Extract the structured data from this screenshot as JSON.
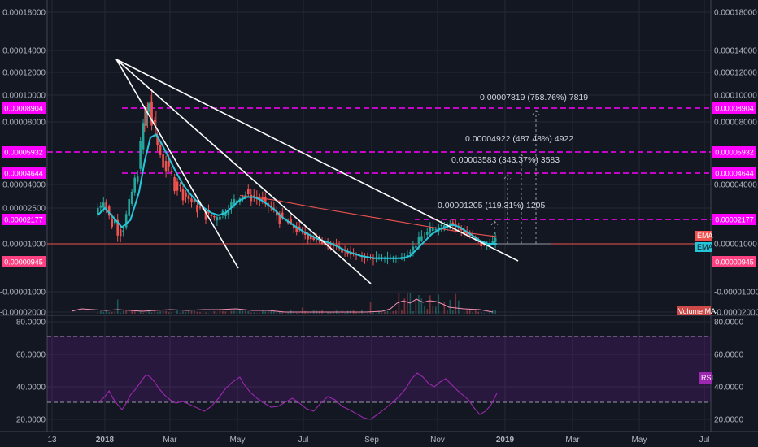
{
  "chart_data": {
    "type": "line",
    "x_labels": [
      "13",
      "2018",
      "Mar",
      "May",
      "Jul",
      "Sep",
      "Nov",
      "2019",
      "Mar",
      "May",
      "Jul"
    ],
    "price_ticks": [
      "0.00018000",
      "0.00014000",
      "0.00012000",
      "0.00010000",
      "0.00008000",
      "0.00004000",
      "0.00002500",
      "0.00001000",
      "-0.00001000",
      "-0.00002000"
    ],
    "price_ticks_right": [
      "0.00018000",
      "0.00014000",
      "0.00012000",
      "0.00010000",
      "0.00008000",
      "0.00004000",
      "0.00001000",
      "-0.00001000",
      "-0.00002000"
    ],
    "level_labels": [
      "0.00008904",
      "0.00005932",
      "0.00004644",
      "0.00002177",
      "0.00000945"
    ],
    "annotations": [
      "0.00007819 (758.76%) 7819",
      "0.00004922 (487.48%) 4922",
      "0.00003583 (343.37%) 3583",
      "0.00001205 (119.31%) 1205"
    ],
    "indicator_labels": [
      "EMA",
      "EMA"
    ],
    "volume_label": "Volume MA",
    "rsi": {
      "label": "RSI",
      "ticks": [
        "80.0000",
        "60.0000",
        "40.0000",
        "20.0000"
      ],
      "upper": 70,
      "lower": 30,
      "range": [
        18,
        82
      ]
    },
    "price_series": [
      [
        -5,
        2.2e-05
      ],
      [
        0,
        3e-05
      ],
      [
        3,
        2.6e-05
      ],
      [
        6,
        1.8e-05
      ],
      [
        9,
        2e-05
      ],
      [
        12,
        1.4e-05
      ],
      [
        15,
        1.7e-05
      ],
      [
        18,
        2.4e-05
      ],
      [
        21,
        3.5e-05
      ],
      [
        24,
        4.5e-05
      ],
      [
        26,
        5.5e-05
      ],
      [
        28,
        7e-05
      ],
      [
        30,
        8.5e-05
      ],
      [
        32,
        9e-05
      ],
      [
        33,
        9.5e-05
      ],
      [
        35,
        8e-05
      ],
      [
        37,
        7.1e-05
      ],
      [
        40,
        6.2e-05
      ],
      [
        43,
        5.5e-05
      ],
      [
        46,
        5e-05
      ],
      [
        50,
        4.3e-05
      ],
      [
        55,
        3.7e-05
      ],
      [
        60,
        3.2e-05
      ],
      [
        65,
        2.7e-05
      ],
      [
        70,
        2.4e-05
      ],
      [
        75,
        2.2e-05
      ],
      [
        80,
        2.1e-05
      ],
      [
        85,
        2.3e-05
      ],
      [
        90,
        2.6e-05
      ],
      [
        95,
        3.1e-05
      ],
      [
        100,
        3.4e-05
      ],
      [
        105,
        3.3e-05
      ],
      [
        110,
        3.1e-05
      ],
      [
        115,
        2.8e-05
      ],
      [
        120,
        2.4e-05
      ],
      [
        125,
        2.1e-05
      ],
      [
        130,
        1.9e-05
      ],
      [
        135,
        1.7e-05
      ],
      [
        140,
        1.5e-05
      ],
      [
        150,
        1.2e-05
      ],
      [
        160,
        1e-05
      ],
      [
        170,
        7e-06
      ],
      [
        180,
        5e-06
      ],
      [
        190,
        4e-06
      ],
      [
        200,
        4e-06
      ],
      [
        210,
        4e-06
      ],
      [
        215,
        6e-06
      ],
      [
        220,
        9e-06
      ],
      [
        225,
        1.3e-05
      ],
      [
        230,
        1.5e-05
      ],
      [
        235,
        1.7e-05
      ],
      [
        240,
        1.8e-05
      ],
      [
        245,
        1.9e-05
      ],
      [
        250,
        1.7e-05
      ],
      [
        255,
        1.5e-05
      ],
      [
        260,
        1.3e-05
      ],
      [
        265,
        1.1e-05
      ],
      [
        268,
        9e-06
      ],
      [
        272,
        1e-05
      ],
      [
        276,
        1.1e-05
      ]
    ],
    "ema_series": [
      [
        -5,
        2.2e-05
      ],
      [
        0,
        2.5e-05
      ],
      [
        6,
        2.1e-05
      ],
      [
        12,
        1.7e-05
      ],
      [
        18,
        2e-05
      ],
      [
        24,
        3.5e-05
      ],
      [
        28,
        5.5e-05
      ],
      [
        32,
        7e-05
      ],
      [
        36,
        7.2e-05
      ],
      [
        40,
        6.6e-05
      ],
      [
        45,
        5.7e-05
      ],
      [
        50,
        4.8e-05
      ],
      [
        55,
        4e-05
      ],
      [
        60,
        3.4e-05
      ],
      [
        65,
        2.9e-05
      ],
      [
        70,
        2.5e-05
      ],
      [
        75,
        2.3e-05
      ],
      [
        80,
        2.2e-05
      ],
      [
        85,
        2.3e-05
      ],
      [
        90,
        2.6e-05
      ],
      [
        95,
        3e-05
      ],
      [
        100,
        3.2e-05
      ],
      [
        105,
        3.2e-05
      ],
      [
        110,
        3e-05
      ],
      [
        115,
        2.7e-05
      ],
      [
        120,
        2.4e-05
      ],
      [
        125,
        2.1e-05
      ],
      [
        130,
        1.9e-05
      ],
      [
        135,
        1.7e-05
      ],
      [
        140,
        1.5e-05
      ],
      [
        150,
        1.2e-05
      ],
      [
        160,
        1e-05
      ],
      [
        170,
        7e-06
      ],
      [
        180,
        5e-06
      ],
      [
        190,
        4e-06
      ],
      [
        200,
        4e-06
      ],
      [
        210,
        4e-06
      ],
      [
        215,
        5e-06
      ],
      [
        220,
        8e-06
      ],
      [
        225,
        1.1e-05
      ],
      [
        230,
        1.4e-05
      ],
      [
        235,
        1.6e-05
      ],
      [
        240,
        1.7e-05
      ],
      [
        245,
        1.8e-05
      ],
      [
        250,
        1.7e-05
      ],
      [
        255,
        1.5e-05
      ],
      [
        260,
        1.3e-05
      ],
      [
        265,
        1.1e-05
      ],
      [
        270,
        1e-05
      ],
      [
        276,
        1e-05
      ]
    ],
    "ema_slow_series": [
      [
        95,
        3.3e-05
      ],
      [
        120,
        3e-05
      ],
      [
        150,
        2.5e-05
      ],
      [
        180,
        2.2e-05
      ],
      [
        210,
        1.9e-05
      ],
      [
        230,
        1.7e-05
      ],
      [
        250,
        1.5e-05
      ],
      [
        276,
        1.3e-05
      ]
    ],
    "rsi_series": [
      [
        -5,
        40
      ],
      [
        0,
        48
      ],
      [
        3,
        55
      ],
      [
        6,
        45
      ],
      [
        9,
        38
      ],
      [
        12,
        32
      ],
      [
        15,
        40
      ],
      [
        18,
        50
      ],
      [
        22,
        58
      ],
      [
        26,
        68
      ],
      [
        29,
        75
      ],
      [
        32,
        72
      ],
      [
        35,
        66
      ],
      [
        38,
        58
      ],
      [
        42,
        50
      ],
      [
        46,
        44
      ],
      [
        50,
        40
      ],
      [
        55,
        42
      ],
      [
        60,
        38
      ],
      [
        65,
        34
      ],
      [
        70,
        30
      ],
      [
        75,
        36
      ],
      [
        80,
        46
      ],
      [
        85,
        58
      ],
      [
        90,
        66
      ],
      [
        95,
        72
      ],
      [
        98,
        63
      ],
      [
        102,
        54
      ],
      [
        107,
        46
      ],
      [
        112,
        40
      ],
      [
        117,
        35
      ],
      [
        122,
        36
      ],
      [
        127,
        41
      ],
      [
        132,
        46
      ],
      [
        137,
        40
      ],
      [
        142,
        33
      ],
      [
        147,
        30
      ],
      [
        152,
        40
      ],
      [
        157,
        48
      ],
      [
        162,
        44
      ],
      [
        167,
        36
      ],
      [
        172,
        32
      ],
      [
        177,
        27
      ],
      [
        182,
        22
      ],
      [
        187,
        20
      ],
      [
        192,
        26
      ],
      [
        197,
        33
      ],
      [
        202,
        40
      ],
      [
        207,
        48
      ],
      [
        212,
        58
      ],
      [
        216,
        70
      ],
      [
        220,
        77
      ],
      [
        224,
        72
      ],
      [
        228,
        64
      ],
      [
        232,
        60
      ],
      [
        236,
        66
      ],
      [
        240,
        70
      ],
      [
        244,
        63
      ],
      [
        248,
        56
      ],
      [
        252,
        50
      ],
      [
        256,
        44
      ],
      [
        260,
        34
      ],
      [
        264,
        26
      ],
      [
        268,
        30
      ],
      [
        272,
        38
      ],
      [
        276,
        52
      ]
    ]
  }
}
